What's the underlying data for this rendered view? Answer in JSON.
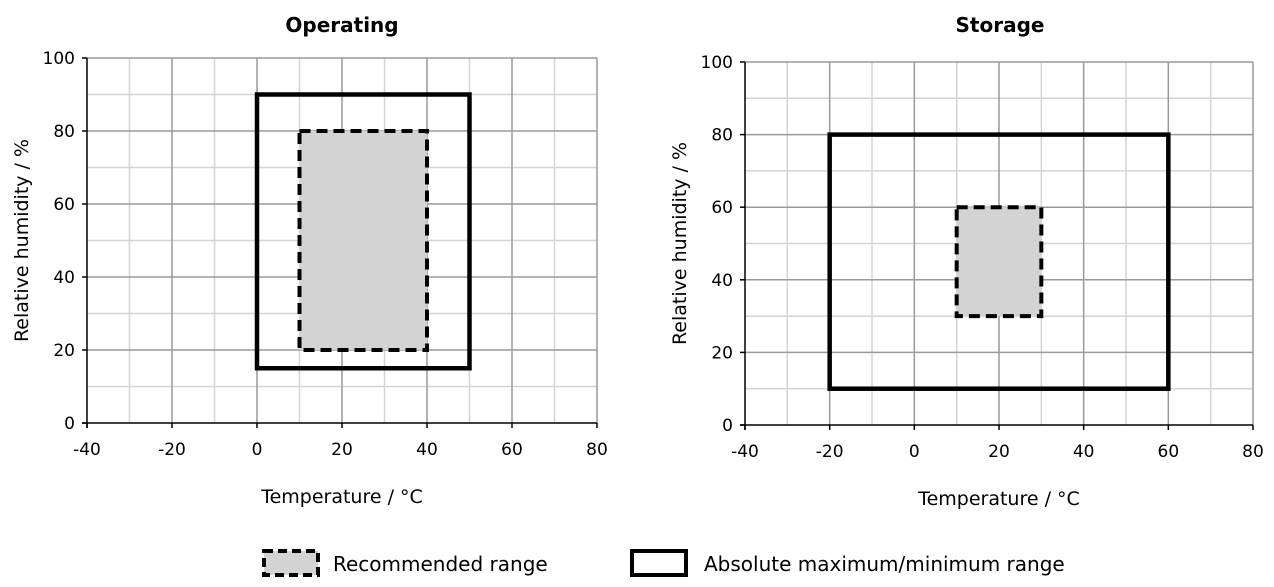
{
  "chart_data": [
    {
      "type": "area",
      "title": "Operating",
      "xlabel": "Temperature / °C",
      "ylabel": "Relative humidity / %",
      "xlim": [
        -40,
        80
      ],
      "ylim": [
        0,
        100
      ],
      "xticks": [
        "-40",
        "-20",
        "0",
        "20",
        "40",
        "60",
        "80"
      ],
      "yticks": [
        "0",
        "20",
        "40",
        "60",
        "80",
        "100"
      ],
      "grid": true,
      "series": [
        {
          "name": "Recommended range",
          "x": [
            10,
            40
          ],
          "y": [
            20,
            80
          ]
        },
        {
          "name": "Absolute maximum/minimum range",
          "x": [
            0,
            50
          ],
          "y": [
            15,
            90
          ]
        }
      ]
    },
    {
      "type": "area",
      "title": "Storage",
      "xlabel": "Temperature / °C",
      "ylabel": "Relative humidity / %",
      "xlim": [
        -40,
        80
      ],
      "ylim": [
        0,
        100
      ],
      "xticks": [
        "-40",
        "-20",
        "0",
        "20",
        "40",
        "60",
        "80"
      ],
      "yticks": [
        "0",
        "20",
        "40",
        "60",
        "80",
        "100"
      ],
      "grid": true,
      "series": [
        {
          "name": "Recommended range",
          "x": [
            10,
            30
          ],
          "y": [
            30,
            60
          ]
        },
        {
          "name": "Absolute maximum/minimum range",
          "x": [
            -20,
            60
          ],
          "y": [
            10,
            80
          ]
        }
      ]
    }
  ],
  "legend": {
    "placement": "bottom",
    "items": [
      {
        "label": "Recommended range",
        "style": "dashed-filled"
      },
      {
        "label": "Absolute maximum/minimum range",
        "style": "solid-outline"
      }
    ]
  },
  "colors": {
    "recommended_fill": "#d3d3d3",
    "outline": "#000000",
    "grid_major": "#9a9a9a",
    "grid_minor": "#d4d4d4"
  }
}
